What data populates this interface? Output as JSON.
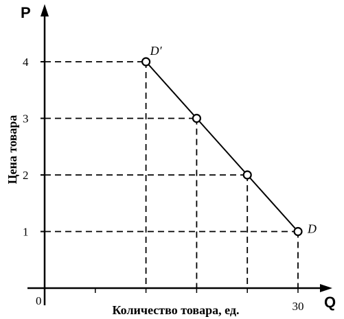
{
  "chart_data": {
    "type": "line",
    "title": "",
    "y_axis_letter": "P",
    "x_axis_letter": "Q",
    "ylabel": "Цена товара",
    "xlabel": "Количество товара, ед.",
    "origin_label": "0",
    "ylim": [
      0,
      5
    ],
    "y_ticks": [
      1,
      2,
      3,
      4
    ],
    "y_tick_labels": [
      "1",
      "2",
      "3",
      "4"
    ],
    "xlim": [
      0,
      36
    ],
    "x_tick_values": [
      6,
      12,
      18,
      24,
      30
    ],
    "x_tick_labels": [
      "30"
    ],
    "x_tick_label_values": [
      30
    ],
    "grid": "dashed guide lines to each point",
    "series": [
      {
        "points": [
          {
            "x": 12,
            "y": 4,
            "label": "D′"
          },
          {
            "x": 18,
            "y": 3,
            "label": ""
          },
          {
            "x": 24,
            "y": 2,
            "label": ""
          },
          {
            "x": 30,
            "y": 1,
            "label": "D"
          }
        ]
      }
    ]
  }
}
